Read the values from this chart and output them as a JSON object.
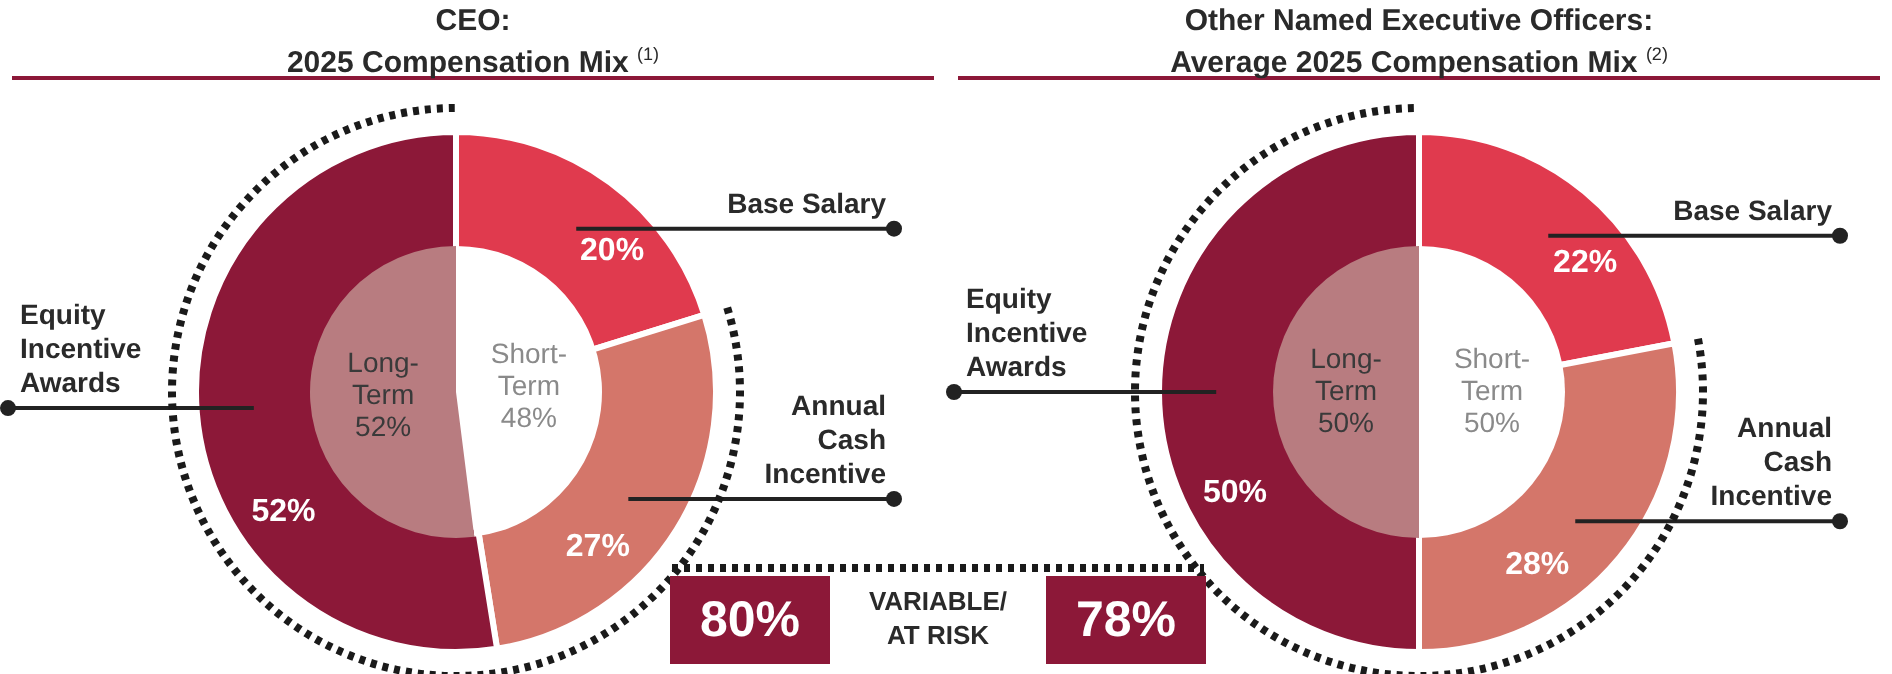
{
  "chart_data": [
    {
      "type": "donut",
      "title": "CEO:\n2025 Compensation Mix $^{(1)}$",
      "categories": [
        "Base Salary",
        "Annual Cash Incentive",
        "Equity Incentive Awards"
      ],
      "values": [
        20,
        27,
        52
      ],
      "value_labels": [
        "20%",
        "27%",
        "52%"
      ],
      "colors": [
        "#e03a4e",
        "#d4766a",
        "#8c1838"
      ],
      "legend": false
    },
    {
      "type": "pie",
      "categories": [
        "Short-Term",
        "Long-Term"
      ],
      "values": [
        48,
        52
      ],
      "value_labels": [
        "48%",
        "52%"
      ],
      "colors": [
        "#ffffff",
        "#b87c80"
      ],
      "legend": false
    },
    {
      "type": "donut",
      "title": "Other Named Executive Officers:\nAverage 2025 Compensation Mix $^{(2)}$",
      "categories": [
        "Base Salary",
        "Annual Cash Incentive",
        "Equity Incentive Awards"
      ],
      "values": [
        22,
        28,
        50
      ],
      "value_labels": [
        "22%",
        "28%",
        "50%"
      ],
      "colors": [
        "#e03a4e",
        "#d4766a",
        "#8c1838"
      ],
      "legend": false
    },
    {
      "type": "pie",
      "categories": [
        "Short-Term",
        "Long-Term"
      ],
      "values": [
        50,
        50
      ],
      "value_labels": [
        "50%",
        "50%"
      ],
      "colors": [
        "#ffffff",
        "#b87c80"
      ],
      "legend": false
    },
    {
      "type": "other",
      "annotations": [
        "80%",
        "VARIABLE/\nAT RISK",
        "78%"
      ]
    }
  ]
}
